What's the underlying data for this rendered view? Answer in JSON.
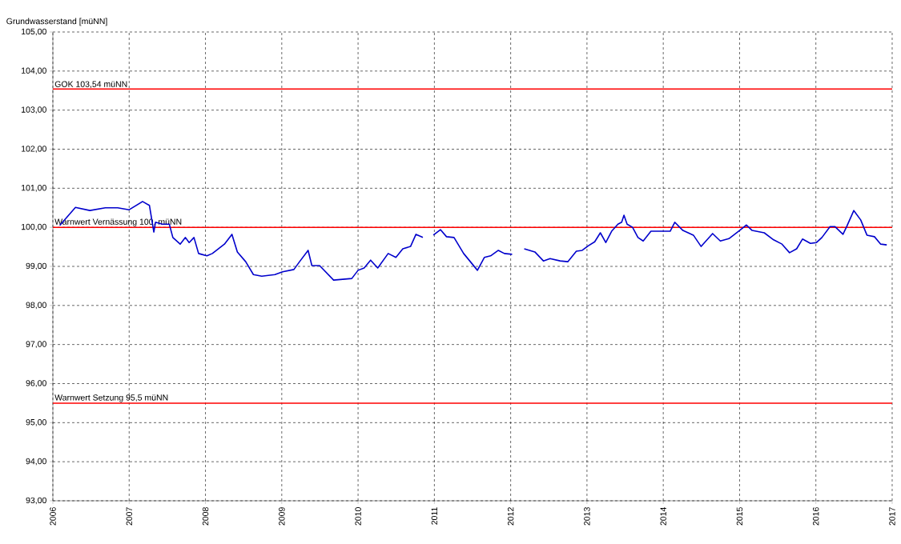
{
  "chart_data": {
    "type": "line",
    "ylabel": "Grundwasserstand [müNN]",
    "x": [
      "2006-02-03",
      "2006-04-19",
      "2006-06-27",
      "2006-09-09",
      "2006-11-07",
      "2007-01-01",
      "2007-03-06",
      "2007-04-08",
      "2007-04-29",
      "2007-05-07",
      "2007-06-09",
      "2007-07-12",
      "2007-07-29",
      "2007-09-02",
      "2007-09-27",
      "2007-10-15",
      "2007-11-07",
      "2007-11-29",
      "2008-01-08",
      "2008-02-03",
      "2008-04-01",
      "2008-05-07",
      "2008-06-02",
      "2008-07-12",
      "2008-08-18",
      "2008-09-27",
      "2008-11-29",
      "2009-01-05",
      "2009-02-28",
      "2009-03-27",
      "2009-05-07",
      "2009-05-25",
      "2009-07-01",
      "2009-09-06",
      "2009-12-02",
      "2010-01-01",
      "2010-01-30",
      "2010-03-02",
      "2010-04-05",
      "2010-05-25",
      "2010-07-01",
      "2010-08-03",
      "2010-09-09",
      "2010-10-05",
      "2010-11-07",
      "2010-12-01",
      "2010-12-27",
      "2011-01-30",
      "2011-02-28",
      "2011-04-05",
      "2011-05-21",
      "2011-07-26",
      "2011-08-28",
      "2011-09-27",
      "2011-11-03",
      "2011-12-02",
      "2012-01-08",
      "2012-02-01",
      "2012-03-06",
      "2012-04-26",
      "2012-06-06",
      "2012-07-08",
      "2012-08-25",
      "2012-10-01",
      "2012-11-11",
      "2012-12-09",
      "2013-01-08",
      "2013-02-07",
      "2013-03-06",
      "2013-04-01",
      "2013-04-29",
      "2013-05-29",
      "2013-06-16",
      "2013-06-27",
      "2013-07-12",
      "2013-08-07",
      "2013-09-02",
      "2013-09-27",
      "2013-11-03",
      "2013-11-29",
      "2014-02-03",
      "2014-02-25",
      "2014-04-05",
      "2014-05-25",
      "2014-07-01",
      "2014-08-25",
      "2014-10-01",
      "2014-11-11",
      "2015-01-01",
      "2015-02-03",
      "2015-03-02",
      "2015-04-29",
      "2015-06-13",
      "2015-07-23",
      "2015-08-28",
      "2015-10-01",
      "2015-10-29",
      "2015-12-06",
      "2016-01-04",
      "2016-01-30",
      "2016-03-09",
      "2016-04-01",
      "2016-05-10",
      "2016-05-28",
      "2016-07-01",
      "2016-08-03",
      "2016-09-02",
      "2016-10-08",
      "2016-11-07",
      "2016-12-06"
    ],
    "series": [
      {
        "color": "#0000cc",
        "values": [
          100.05,
          100.51,
          100.43,
          100.5,
          100.5,
          100.45,
          100.66,
          100.56,
          99.88,
          100.13,
          100.08,
          100.08,
          99.74,
          99.57,
          99.74,
          99.61,
          99.74,
          99.33,
          99.27,
          99.33,
          99.57,
          99.82,
          99.37,
          99.12,
          98.79,
          98.75,
          98.79,
          98.86,
          98.92,
          99.12,
          99.41,
          99.02,
          99.02,
          98.65,
          98.69,
          98.9,
          98.96,
          99.16,
          98.96,
          99.33,
          99.23,
          99.45,
          99.51,
          99.82,
          99.74,
          null,
          99.8,
          99.94,
          99.76,
          99.74,
          99.33,
          98.9,
          99.23,
          99.27,
          99.41,
          99.33,
          99.31,
          null,
          99.45,
          99.37,
          99.14,
          99.2,
          99.14,
          99.12,
          99.39,
          99.41,
          99.53,
          99.63,
          99.86,
          99.61,
          99.9,
          100.08,
          100.13,
          100.31,
          100.08,
          100.0,
          99.74,
          99.65,
          99.9,
          99.9,
          99.9,
          100.13,
          99.92,
          99.8,
          99.51,
          99.84,
          99.65,
          99.71,
          99.92,
          100.06,
          99.92,
          99.86,
          99.68,
          99.57,
          99.35,
          99.45,
          99.7,
          99.59,
          99.61,
          99.74,
          100.02,
          100.02,
          99.82,
          100.02,
          100.43,
          100.19,
          99.8,
          99.76,
          99.57,
          99.55
        ]
      }
    ],
    "xlim": [
      "2006-01-01",
      "2017-01-01"
    ],
    "xticks": [
      {
        "value": "2006-01-01",
        "label": "2006"
      },
      {
        "value": "2007-01-01",
        "label": "2007"
      },
      {
        "value": "2008-01-01",
        "label": "2008"
      },
      {
        "value": "2009-01-01",
        "label": "2009"
      },
      {
        "value": "2010-01-01",
        "label": "2010"
      },
      {
        "value": "2011-01-01",
        "label": "2011"
      },
      {
        "value": "2012-01-01",
        "label": "2012"
      },
      {
        "value": "2013-01-01",
        "label": "2013"
      },
      {
        "value": "2014-01-01",
        "label": "2014"
      },
      {
        "value": "2015-01-01",
        "label": "2015"
      },
      {
        "value": "2016-01-01",
        "label": "2016"
      },
      {
        "value": "2017-01-01",
        "label": "2017"
      }
    ],
    "ylim": [
      93,
      105
    ],
    "yticks": [
      {
        "value": 93,
        "label": "93,00"
      },
      {
        "value": 94,
        "label": "94,00"
      },
      {
        "value": 95,
        "label": "95,00"
      },
      {
        "value": 96,
        "label": "96,00"
      },
      {
        "value": 97,
        "label": "97,00"
      },
      {
        "value": 98,
        "label": "98,00"
      },
      {
        "value": 99,
        "label": "99,00"
      },
      {
        "value": 100,
        "label": "100,00"
      },
      {
        "value": 101,
        "label": "101,00"
      },
      {
        "value": 102,
        "label": "102,00"
      },
      {
        "value": 103,
        "label": "103,00"
      },
      {
        "value": 104,
        "label": "104,00"
      },
      {
        "value": 105,
        "label": "105,00"
      }
    ],
    "ref_lines": [
      {
        "axis": "y",
        "value": 103.54,
        "label": "GOK 103,54 müNN",
        "color": "#ff0000"
      },
      {
        "axis": "y",
        "value": 100,
        "label": "Warnwert Vernässung 100, müNN",
        "color": "#ff0000"
      },
      {
        "axis": "y",
        "value": 95.5,
        "label": "Warnwert Setzung 95,5 müNN",
        "color": "#ff0000"
      }
    ],
    "grid": true,
    "legend": false
  }
}
